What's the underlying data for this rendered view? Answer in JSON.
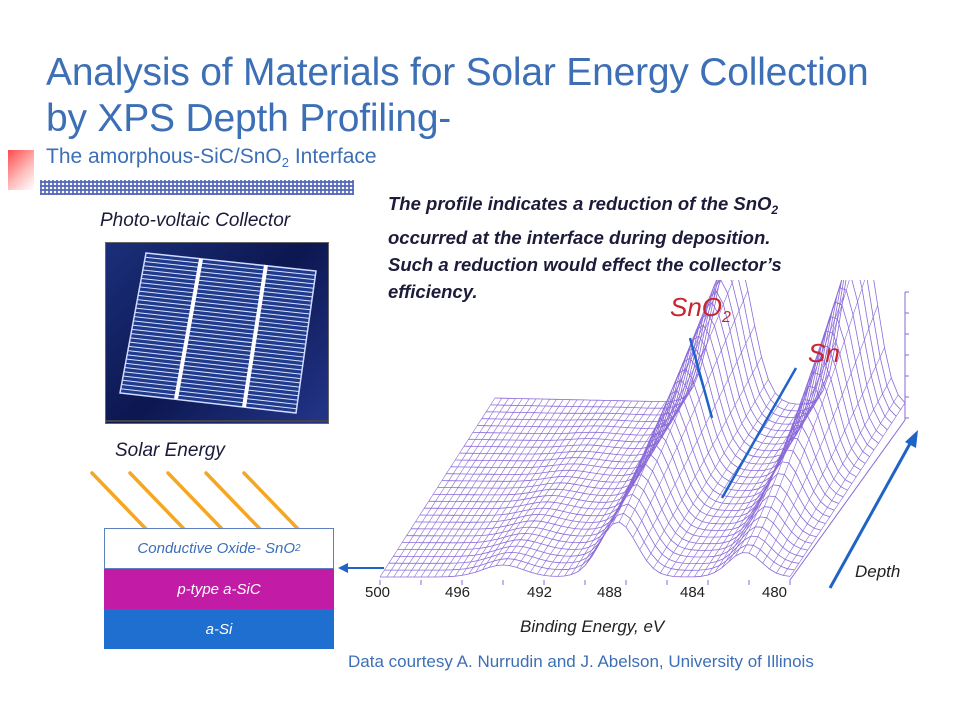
{
  "title_line1": "Analysis of Materials for Solar Energy Collection",
  "title_line2": "by XPS Depth Profiling-",
  "subtitle": {
    "prefix": "The  amorphous-SiC/SnO",
    "sub": "2",
    "suffix": " Interface"
  },
  "photo_caption": "Photo-voltaic Collector",
  "note": {
    "line1_prefix": "The profile indicates a reduction of the SnO",
    "line1_sub": "2",
    "line2": "occurred at the interface during deposition.",
    "line3": "Such a reduction would effect the collector’s",
    "line4": "efficiency."
  },
  "solar_caption": "Solar Energy",
  "layers": {
    "top_prefix": "Conductive Oxide- SnO",
    "top_sub": "2",
    "middle": "p-type a-SiC",
    "bottom": "a-Si"
  },
  "peaks": {
    "sno2_main": "SnO",
    "sno2_sub": "2",
    "sn": "Sn"
  },
  "x_ticks": [
    "500",
    "496",
    "492",
    "488",
    "484",
    "480"
  ],
  "x_label": "Binding Energy, eV",
  "depth_label": "Depth",
  "credit": "Data courtesy A. Nurrudin and J. Abelson, University of Illinois",
  "colors": {
    "title_blue": "#3d6fb6",
    "mesh": "#8a6ad8",
    "peak_label_red": "#c8252f",
    "arrow_blue": "#1f63c7",
    "ray_orange": "#f5a623",
    "ptype_magenta": "#c21ba6",
    "asi_blue": "#1f6fd0"
  }
}
